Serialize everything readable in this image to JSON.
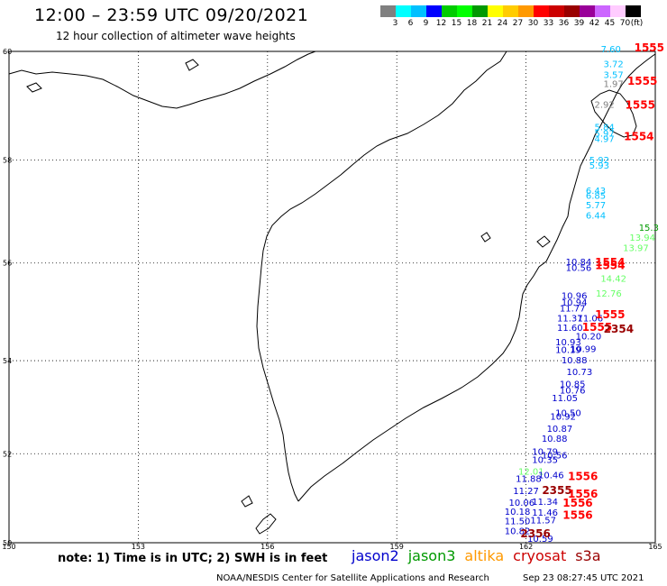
{
  "header": {
    "title": "12:00 – 23:59 UTC 09/20/2021",
    "subtitle": "12 hour collection of altimeter wave heights"
  },
  "colorbar": {
    "unit_label": "(ft)",
    "colors": [
      "#808080",
      "#00ffff",
      "#00c0ff",
      "#0000ff",
      "#00cc00",
      "#00ff00",
      "#009900",
      "#ffff00",
      "#ffcc00",
      "#ff9900",
      "#ff0000",
      "#cc0000",
      "#990000",
      "#990099",
      "#cc66ff",
      "#ffccff",
      "#000000"
    ],
    "labels": [
      "3",
      "6",
      "9",
      "12",
      "15",
      "18",
      "21",
      "24",
      "27",
      "30",
      "33",
      "36",
      "39",
      "42",
      "45",
      "70"
    ]
  },
  "axes": {
    "lon_labels": [
      "150",
      "153",
      "156",
      "159",
      "162",
      "165"
    ],
    "lat_labels": [
      "50",
      "52",
      "54",
      "56",
      "58",
      "60"
    ]
  },
  "note": "note:  1) Time is in UTC;  2) SWH is in feet",
  "legend": [
    {
      "label": "jason2",
      "color": "#0000cc"
    },
    {
      "label": "jason3",
      "color": "#009900"
    },
    {
      "label": "altika",
      "color": "#ff9900"
    },
    {
      "label": "cryosat",
      "color": "#cc0000"
    },
    {
      "label": "s3a",
      "color": "#990000"
    }
  ],
  "footer": {
    "center": "NOAA/NESDIS Center for Satellite Applications and Research",
    "timestamp": "Sep 23 08:27:45 UTC 2021"
  },
  "wave_labels": [
    {
      "text": "7.60",
      "lon": 163.97,
      "lat": 59.98,
      "color": "#00c0ff"
    },
    {
      "text": "3.72",
      "lon": 164.03,
      "lat": 59.72,
      "color": "#00c0ff"
    },
    {
      "text": "3.57",
      "lon": 164.03,
      "lat": 59.52,
      "color": "#00c0ff"
    },
    {
      "text": "1.97",
      "lon": 164.03,
      "lat": 59.36,
      "color": "#808080"
    },
    {
      "text": "2.92",
      "lon": 163.82,
      "lat": 58.98,
      "color": "#808080"
    },
    {
      "text": "5.84",
      "lon": 163.82,
      "lat": 58.56,
      "color": "#00c0ff"
    },
    {
      "text": "5.97",
      "lon": 163.82,
      "lat": 58.44,
      "color": "#00c0ff"
    },
    {
      "text": "4.97",
      "lon": 163.82,
      "lat": 58.34,
      "color": "#00c0ff"
    },
    {
      "text": "5.92",
      "lon": 163.7,
      "lat": 57.94,
      "color": "#00c0ff"
    },
    {
      "text": "5.93",
      "lon": 163.7,
      "lat": 57.84,
      "color": "#00c0ff"
    },
    {
      "text": "6.43",
      "lon": 163.62,
      "lat": 57.36,
      "color": "#00c0ff"
    },
    {
      "text": "6.85",
      "lon": 163.62,
      "lat": 57.26,
      "color": "#00c0ff"
    },
    {
      "text": "5.77",
      "lon": 163.62,
      "lat": 57.08,
      "color": "#00c0ff"
    },
    {
      "text": "6.44",
      "lon": 163.62,
      "lat": 56.88,
      "color": "#00c0ff"
    },
    {
      "text": "15.3",
      "lon": 164.85,
      "lat": 56.64,
      "color": "#009900"
    },
    {
      "text": "13.94",
      "lon": 164.7,
      "lat": 56.44,
      "color": "#66ff66"
    },
    {
      "text": "13.97",
      "lon": 164.55,
      "lat": 56.24,
      "color": "#66ff66"
    },
    {
      "text": "10.84",
      "lon": 163.22,
      "lat": 55.96,
      "color": "#0000cc"
    },
    {
      "text": "10.56",
      "lon": 163.22,
      "lat": 55.84,
      "color": "#0000cc"
    },
    {
      "text": "14.42",
      "lon": 164.03,
      "lat": 55.62,
      "color": "#66ff66"
    },
    {
      "text": "12.76",
      "lon": 163.92,
      "lat": 55.32,
      "color": "#66ff66"
    },
    {
      "text": "10.96",
      "lon": 163.12,
      "lat": 55.28,
      "color": "#0000cc"
    },
    {
      "text": "10.94",
      "lon": 163.12,
      "lat": 55.14,
      "color": "#0000cc"
    },
    {
      "text": "11.77",
      "lon": 163.08,
      "lat": 55.02,
      "color": "#0000cc"
    },
    {
      "text": "11.37",
      "lon": 163.02,
      "lat": 54.82,
      "color": "#0000cc"
    },
    {
      "text": "11.06",
      "lon": 163.49,
      "lat": 54.82,
      "color": "#0000cc"
    },
    {
      "text": "11.60",
      "lon": 163.02,
      "lat": 54.62,
      "color": "#0000cc"
    },
    {
      "text": "10.20",
      "lon": 163.45,
      "lat": 54.44,
      "color": "#0000cc"
    },
    {
      "text": "10.93",
      "lon": 162.98,
      "lat": 54.32,
      "color": "#0000cc"
    },
    {
      "text": "10.99",
      "lon": 163.33,
      "lat": 54.18,
      "color": "#0000cc"
    },
    {
      "text": "10.19",
      "lon": 162.98,
      "lat": 54.16,
      "color": "#0000cc"
    },
    {
      "text": "10.88",
      "lon": 163.12,
      "lat": 53.94,
      "color": "#0000cc"
    },
    {
      "text": "10.73",
      "lon": 163.24,
      "lat": 53.7,
      "color": "#0000cc"
    },
    {
      "text": "10.85",
      "lon": 163.08,
      "lat": 53.44,
      "color": "#0000cc"
    },
    {
      "text": "10.76",
      "lon": 163.08,
      "lat": 53.3,
      "color": "#0000cc"
    },
    {
      "text": "11.05",
      "lon": 162.9,
      "lat": 53.14,
      "color": "#0000cc"
    },
    {
      "text": "10.50",
      "lon": 162.98,
      "lat": 52.82,
      "color": "#0000cc"
    },
    {
      "text": "10.92",
      "lon": 162.86,
      "lat": 52.74,
      "color": "#0000cc"
    },
    {
      "text": "10.87",
      "lon": 162.78,
      "lat": 52.48,
      "color": "#0000cc"
    },
    {
      "text": "10.88",
      "lon": 162.66,
      "lat": 52.26,
      "color": "#0000cc"
    },
    {
      "text": "10.79",
      "lon": 162.44,
      "lat": 51.98,
      "color": "#0000cc"
    },
    {
      "text": "10.56",
      "lon": 162.66,
      "lat": 51.9,
      "color": "#0000cc"
    },
    {
      "text": "10.35",
      "lon": 162.44,
      "lat": 51.8,
      "color": "#0000cc"
    },
    {
      "text": "12.01",
      "lon": 162.12,
      "lat": 51.54,
      "color": "#66ff66"
    },
    {
      "text": "10.46",
      "lon": 162.58,
      "lat": 51.46,
      "color": "#0000cc"
    },
    {
      "text": "11.88",
      "lon": 162.06,
      "lat": 51.38,
      "color": "#0000cc"
    },
    {
      "text": "11.27",
      "lon": 162.0,
      "lat": 51.1,
      "color": "#0000cc"
    },
    {
      "text": "10.06",
      "lon": 161.9,
      "lat": 50.84,
      "color": "#0000cc"
    },
    {
      "text": "11.34",
      "lon": 162.44,
      "lat": 50.86,
      "color": "#0000cc"
    },
    {
      "text": "10.18",
      "lon": 161.8,
      "lat": 50.64,
      "color": "#0000cc"
    },
    {
      "text": "11.46",
      "lon": 162.44,
      "lat": 50.62,
      "color": "#0000cc"
    },
    {
      "text": "11.50",
      "lon": 161.8,
      "lat": 50.42,
      "color": "#0000cc"
    },
    {
      "text": "11.57",
      "lon": 162.4,
      "lat": 50.44,
      "color": "#0000cc"
    },
    {
      "text": "10.82",
      "lon": 161.8,
      "lat": 50.2,
      "color": "#0000cc"
    },
    {
      "text": "10.59",
      "lon": 162.33,
      "lat": 50.02,
      "color": "#0000cc"
    },
    {
      "text": "1555",
      "lon": 164.86,
      "lat": 60.0,
      "color": "#ff0000",
      "bold": true
    },
    {
      "text": "1555",
      "lon": 164.7,
      "lat": 59.4,
      "color": "#ff0000",
      "bold": true
    },
    {
      "text": "1555",
      "lon": 164.65,
      "lat": 58.96,
      "color": "#ff0000",
      "bold": true
    },
    {
      "text": "1554",
      "lon": 164.62,
      "lat": 58.38,
      "color": "#ff0000",
      "bold": true
    },
    {
      "text": "1554",
      "lon": 163.95,
      "lat": 55.94,
      "color": "#ff0000",
      "bold": true
    },
    {
      "text": "1554",
      "lon": 163.95,
      "lat": 55.88,
      "color": "#ff0000",
      "bold": true
    },
    {
      "text": "1555",
      "lon": 163.95,
      "lat": 54.88,
      "color": "#ff0000",
      "bold": true
    },
    {
      "text": "1555",
      "lon": 163.65,
      "lat": 54.62,
      "color": "#ff0000",
      "bold": true
    },
    {
      "text": "2354",
      "lon": 164.15,
      "lat": 54.58,
      "color": "#990000",
      "bold": true
    },
    {
      "text": "1556",
      "lon": 163.32,
      "lat": 51.42,
      "color": "#ff0000",
      "bold": true
    },
    {
      "text": "2355",
      "lon": 162.72,
      "lat": 51.1,
      "color": "#990000",
      "bold": true
    },
    {
      "text": "1556",
      "lon": 163.32,
      "lat": 51.02,
      "color": "#ff0000",
      "bold": true
    },
    {
      "text": "1556",
      "lon": 163.2,
      "lat": 50.82,
      "color": "#ff0000",
      "bold": true
    },
    {
      "text": "1556",
      "lon": 163.2,
      "lat": 50.55,
      "color": "#ff0000",
      "bold": true
    },
    {
      "text": "2356",
      "lon": 162.22,
      "lat": 50.12,
      "color": "#990000",
      "bold": true
    }
  ]
}
